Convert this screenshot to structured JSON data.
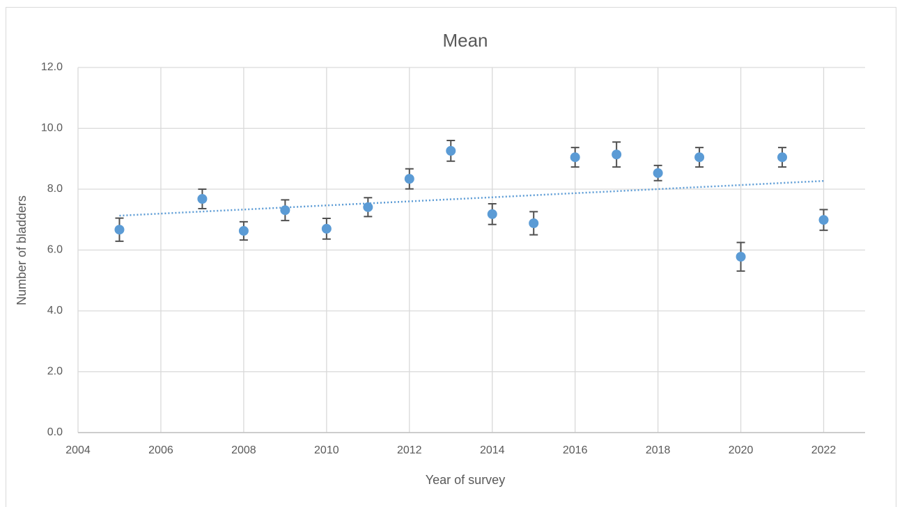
{
  "chart_data": {
    "type": "scatter",
    "title": "Mean",
    "x_label": "Year of survey",
    "y_label": "Number of bladders",
    "x": [
      2005,
      2007,
      2008,
      2009,
      2010,
      2011,
      2012,
      2013,
      2014,
      2015,
      2016,
      2017,
      2018,
      2019,
      2020,
      2021,
      2022
    ],
    "values": [
      6.67,
      7.68,
      6.63,
      7.31,
      6.7,
      7.41,
      8.34,
      9.26,
      7.18,
      6.88,
      9.05,
      9.14,
      8.53,
      9.05,
      5.78,
      9.05,
      6.99
    ],
    "errors": [
      0.38,
      0.32,
      0.3,
      0.34,
      0.34,
      0.31,
      0.33,
      0.34,
      0.34,
      0.38,
      0.32,
      0.41,
      0.25,
      0.32,
      0.47,
      0.32,
      0.34
    ],
    "color": "#5b9bd5",
    "error_color": "#505050",
    "trendline": {
      "x": [
        2005,
        2022
      ],
      "values": [
        7.13,
        8.27
      ],
      "color": "#5b9bd5"
    },
    "xlim": [
      2004,
      2023
    ],
    "xticks": [
      2004,
      2006,
      2008,
      2010,
      2012,
      2014,
      2016,
      2018,
      2020,
      2022
    ],
    "ylim": [
      0,
      12
    ],
    "yticks": [
      {
        "value": 0,
        "label": "0.0"
      },
      {
        "value": 2,
        "label": "2.0"
      },
      {
        "value": 4,
        "label": "4.0"
      },
      {
        "value": 6,
        "label": "6.0"
      },
      {
        "value": 8,
        "label": "8.0"
      },
      {
        "value": 10,
        "label": "10.0"
      },
      {
        "value": 12,
        "label": "12.0"
      }
    ],
    "grid": true
  }
}
